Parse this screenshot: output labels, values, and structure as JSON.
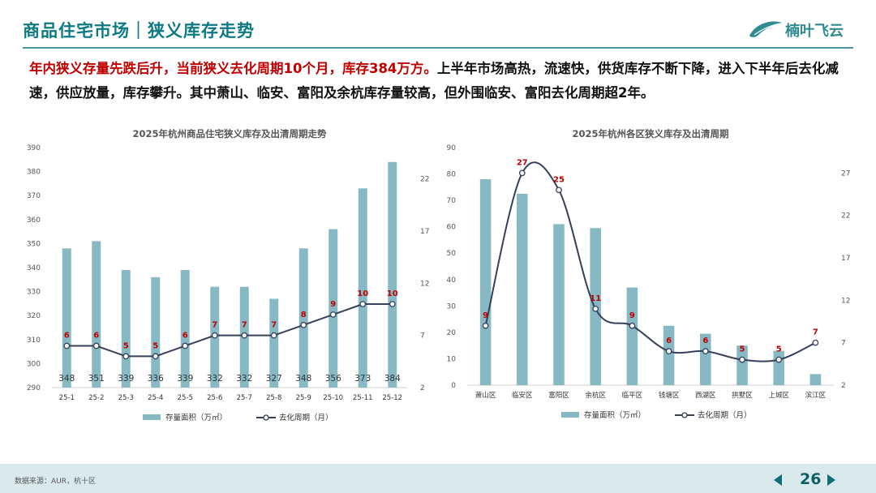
{
  "header": {
    "title": "商品住宅市场｜狭义库存走势",
    "logo_text": "楠叶飞云"
  },
  "summary": {
    "highlight": "年内狭义存量先跌后升，当前狭义去化周期10个月，库存384万方。",
    "rest": "上半年市场高热，流速快，供货库存不断下降，进入下半年后去化减速，供应放量，库存攀升。其中萧山、临安、富阳及余杭库存量较高，但外围临安、富阳去化周期超2年。"
  },
  "colors": {
    "bar": "#86b9c3",
    "line": "#37405a",
    "label": "#c00000",
    "title": "#0d7a83"
  },
  "chart_data": [
    {
      "type": "bar+line",
      "title": "2025年杭州商品住宅狭义库存及出清周期走势",
      "categories": [
        "25-1",
        "25-2",
        "25-3",
        "25-4",
        "25-5",
        "25-6",
        "25-7",
        "25-8",
        "25-9",
        "25-10",
        "25-11",
        "25-12"
      ],
      "series": [
        {
          "name": "存量面积（万㎡）",
          "kind": "bar",
          "axis": "left",
          "values": [
            348,
            351,
            339,
            336,
            339,
            332,
            332,
            327,
            348,
            356,
            373,
            384
          ]
        },
        {
          "name": "去化周期（月）",
          "kind": "line",
          "axis": "right",
          "values": [
            6,
            6,
            5,
            5,
            6,
            7,
            7,
            7,
            8,
            9,
            10,
            10
          ]
        }
      ],
      "left_axis": {
        "min": 290,
        "max": 390,
        "ticks": [
          290,
          300,
          310,
          320,
          330,
          340,
          350,
          360,
          370,
          380,
          390
        ]
      },
      "right_axis": {
        "min": 2,
        "max": 25,
        "ticks": [
          2,
          7,
          12,
          17,
          22
        ]
      },
      "bar_label_position": "bottom",
      "legend": "bottom"
    },
    {
      "type": "bar+line",
      "title": "2025年杭州各区狭义库存及出清周期",
      "categories": [
        "萧山区",
        "临安区",
        "富阳区",
        "余杭区",
        "临平区",
        "钱塘区",
        "西湖区",
        "拱墅区",
        "上城区",
        "滨江区"
      ],
      "series": [
        {
          "name": "存量面积（万㎡）",
          "kind": "bar",
          "axis": "left",
          "values": [
            78,
            72.5,
            61,
            59.5,
            37,
            22.5,
            19.5,
            15,
            13,
            4.2
          ]
        },
        {
          "name": "去化周期（月）",
          "kind": "line",
          "axis": "right",
          "smooth": true,
          "values": [
            9,
            27,
            25,
            11,
            9,
            6,
            6,
            5,
            5,
            7
          ]
        }
      ],
      "left_axis": {
        "min": 0,
        "max": 90,
        "ticks": [
          0,
          10,
          20,
          30,
          40,
          50,
          60,
          70,
          80,
          90
        ]
      },
      "right_axis": {
        "min": 2,
        "max": 30,
        "ticks": [
          2,
          7,
          12,
          17,
          22,
          27
        ]
      },
      "legend": "bottom"
    }
  ],
  "footer": {
    "source": "数据来源：AUR，杭十区",
    "page_number": "26"
  }
}
